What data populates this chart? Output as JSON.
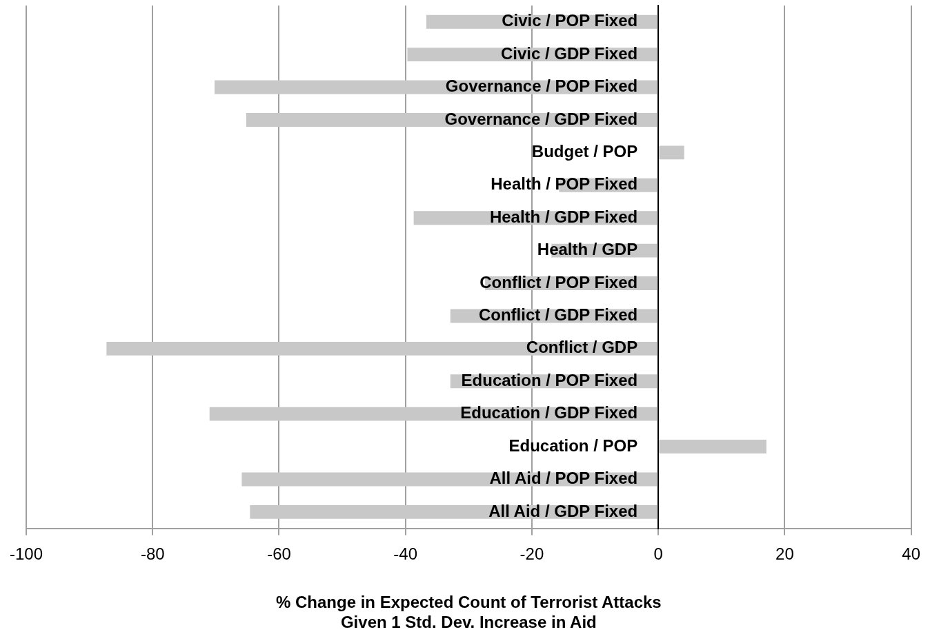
{
  "chart_data": {
    "type": "bar",
    "orientation": "horizontal",
    "xlabel": "% Change in Expected Count of Terrorist Attacks\nGiven 1 Std. Dev. Increase in Aid",
    "categories": [
      "Civic / POP Fixed",
      "Civic / GDP Fixed",
      "Governance / POP Fixed",
      "Governance / GDP Fixed",
      "Budget / POP",
      "Health / POP Fixed",
      "Health / GDP Fixed",
      "Health / GDP",
      "Conflict / POP Fixed",
      "Conflict / GDP Fixed",
      "Conflict / GDP",
      "Education / POP Fixed",
      "Education / GDP Fixed",
      "Education / POP",
      "All Aid / POP Fixed",
      "All Aid / GDP Fixed"
    ],
    "values": [
      -36.7,
      -39.7,
      -70.2,
      -65.2,
      4.1,
      -15.7,
      -38.7,
      -16.9,
      -27.4,
      -32.9,
      -87.3,
      -32.9,
      -71.0,
      17.1,
      -65.9,
      -64.6
    ],
    "color": "#c8c8c8",
    "xlim": [
      -100,
      40
    ],
    "xticks": [
      -100,
      -80,
      -60,
      -40,
      -20,
      0,
      20,
      40
    ],
    "grid": "x",
    "legend": false
  }
}
